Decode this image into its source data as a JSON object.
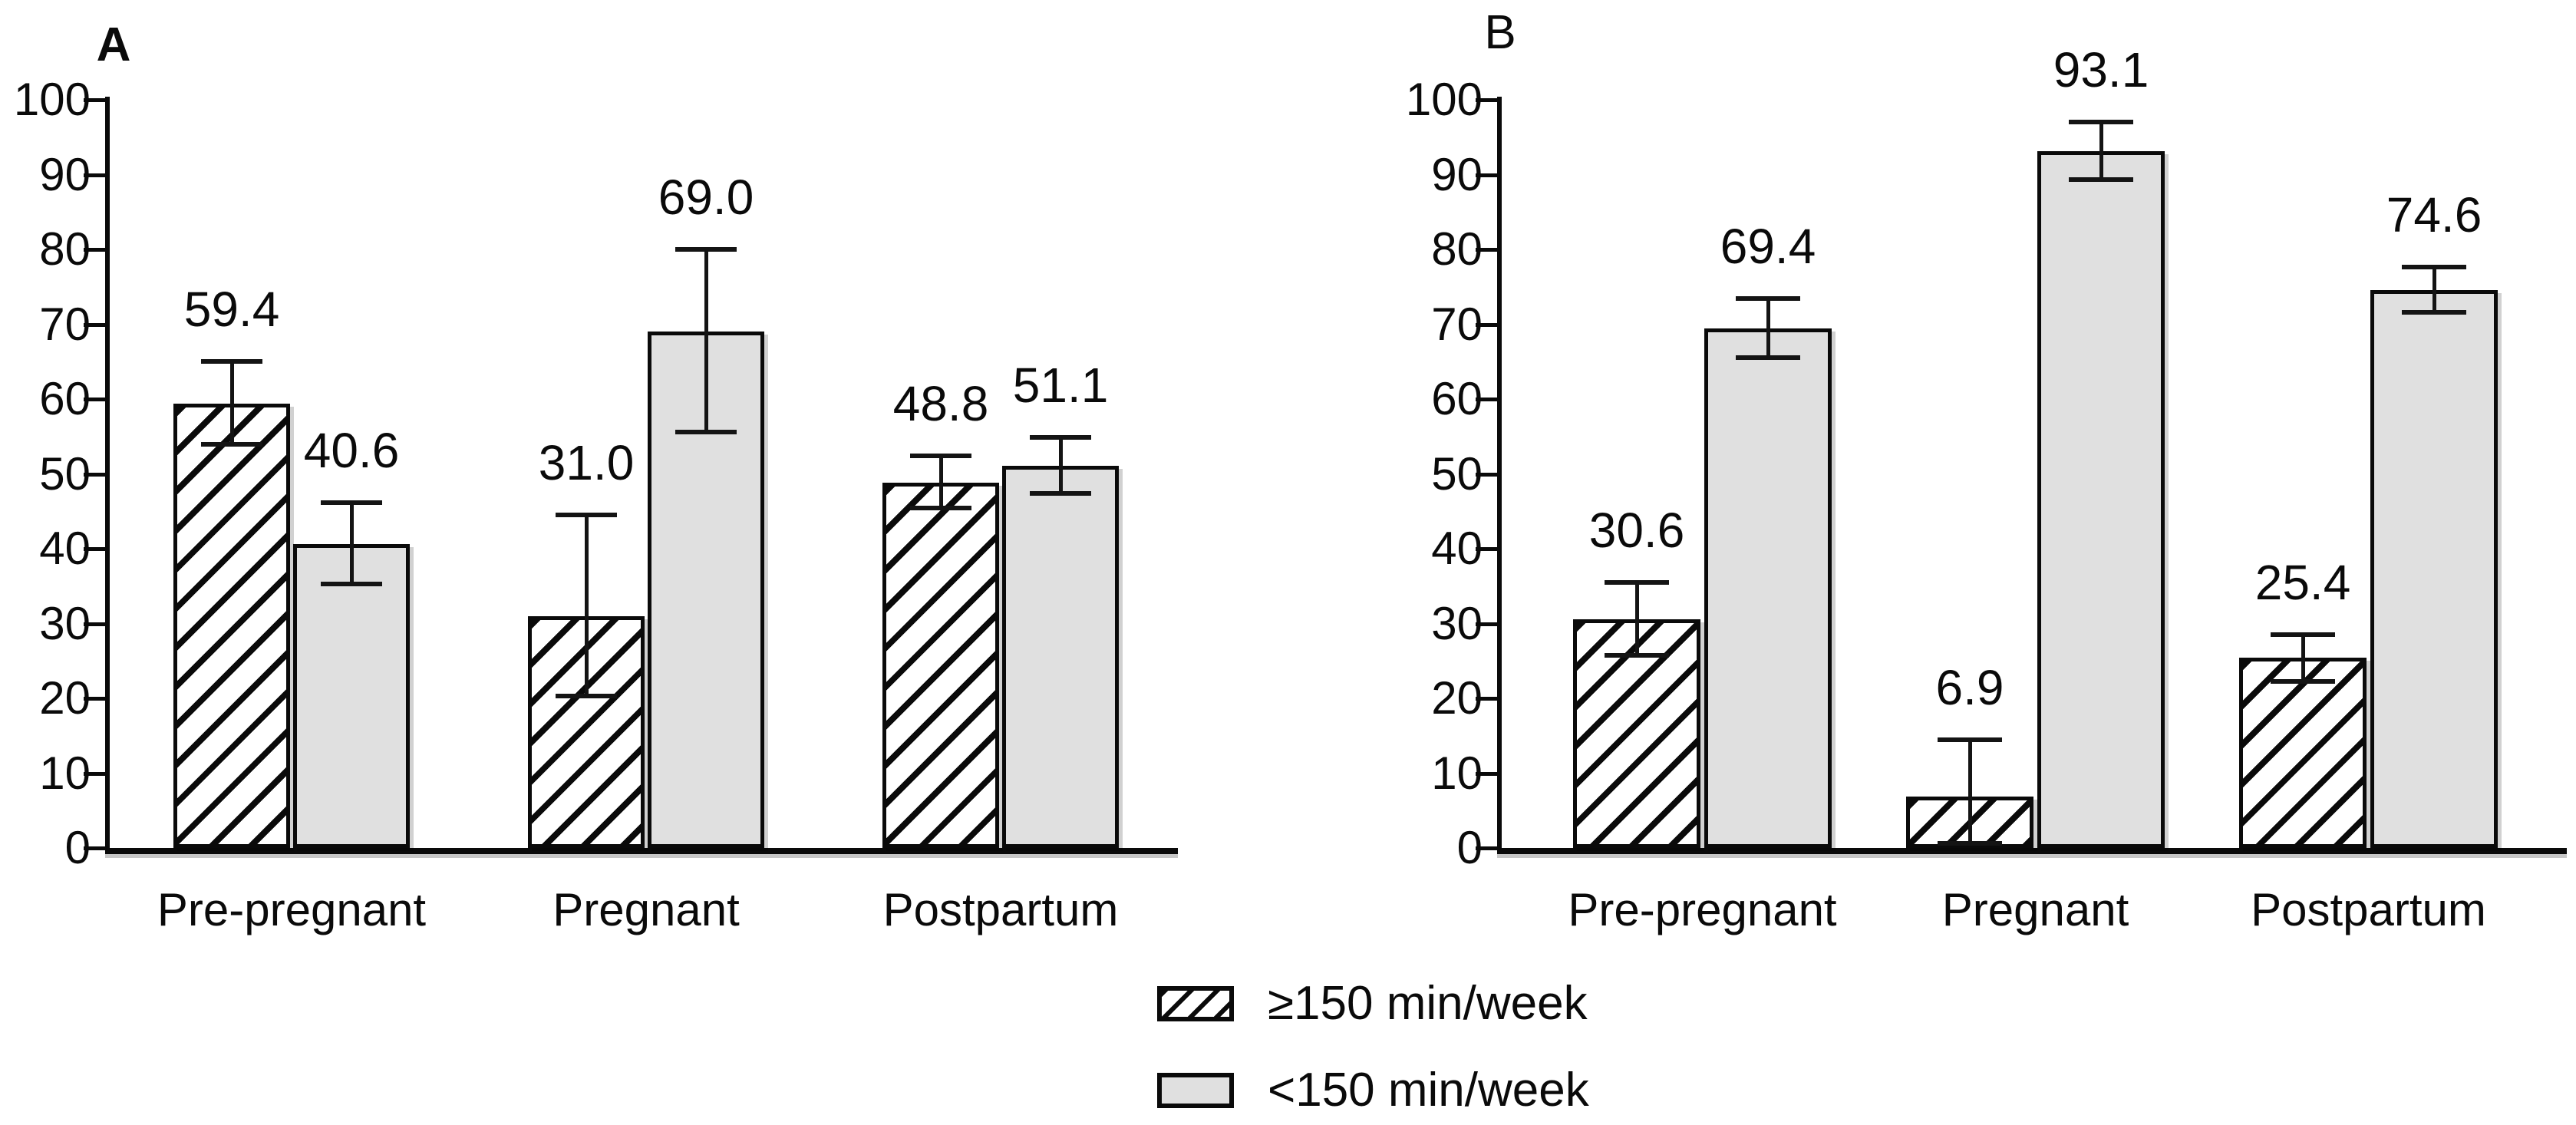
{
  "figure": {
    "background": "#ffffff",
    "ink_color": "#0a0a0a",
    "bar_gray_color": "#e0e0e0",
    "hatch_style": "black diagonal stripes on white"
  },
  "legend": {
    "items": [
      {
        "label": "≥150 min/week",
        "swatch": "hatched"
      },
      {
        "label": "<150 min/week",
        "swatch": "gray"
      }
    ]
  },
  "chart_data": [
    {
      "type": "bar",
      "panel": "A",
      "title": "A",
      "categories": [
        "Pre-pregnant",
        "Pregnant",
        "Postpartum"
      ],
      "series": [
        {
          "name": "≥150 min/week",
          "style": "hatched",
          "values": [
            59.4,
            31.0,
            48.8
          ],
          "error_low": [
            54.0,
            20.3,
            45.4
          ],
          "error_high": [
            65.0,
            44.5,
            52.4
          ]
        },
        {
          "name": "<150 min/week",
          "style": "gray",
          "values": [
            40.6,
            69.0,
            51.1
          ],
          "error_low": [
            35.3,
            55.6,
            47.4
          ],
          "error_high": [
            46.2,
            80.0,
            54.9
          ]
        }
      ],
      "ylim": [
        0,
        100
      ],
      "ytick_step": 10,
      "grid": false,
      "value_labels": true,
      "legend_position": "bottom-center (shared)"
    },
    {
      "type": "bar",
      "panel": "B",
      "title": "B",
      "categories": [
        "Pre-pregnant",
        "Pregnant",
        "Postpartum"
      ],
      "series": [
        {
          "name": "≥150 min/week",
          "style": "hatched",
          "values": [
            30.6,
            6.9,
            25.4
          ],
          "error_low": [
            25.7,
            0.6,
            22.3
          ],
          "error_high": [
            35.5,
            14.5,
            28.5
          ]
        },
        {
          "name": "<150 min/week",
          "style": "gray",
          "values": [
            69.4,
            93.1,
            74.6
          ],
          "error_low": [
            65.5,
            89.3,
            71.6
          ],
          "error_high": [
            73.4,
            97.0,
            77.6
          ]
        }
      ],
      "ylim": [
        0,
        100
      ],
      "ytick_step": 10,
      "grid": false,
      "value_labels": true,
      "legend_position": "bottom-center (shared)"
    }
  ]
}
